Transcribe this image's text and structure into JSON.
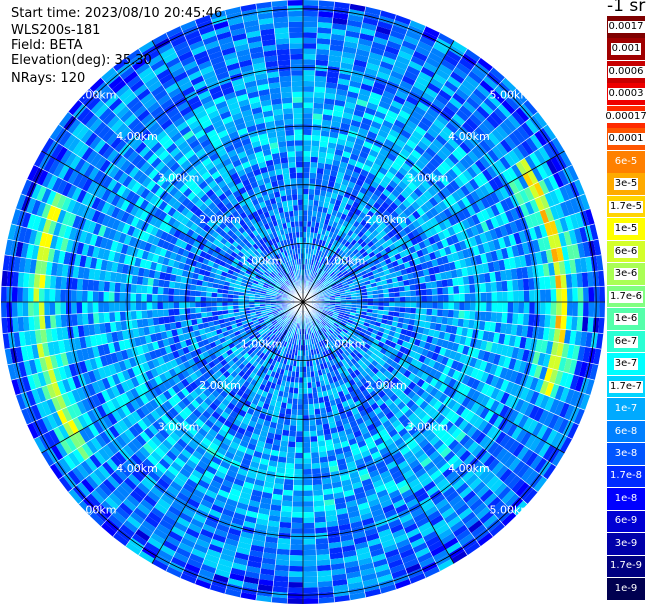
{
  "info": {
    "start_time": "Start time: 2023/08/10 20:45:46",
    "instrument": "WLS200s-181",
    "field": "Field: BETA",
    "elevation": "Elevation(deg): 35.30",
    "nrays": "NRays: 120"
  },
  "colorbar": {
    "title": "-1 sr",
    "entries": [
      {
        "label": "0.0017",
        "color": "#7f0000",
        "dark": false
      },
      {
        "label": "0.001",
        "color": "#a00000",
        "dark": false
      },
      {
        "label": "0.0006",
        "color": "#c80000",
        "dark": false
      },
      {
        "label": "0.0003",
        "color": "#ee0000",
        "dark": false
      },
      {
        "label": "0.00017",
        "color": "#ff2a00",
        "dark": false
      },
      {
        "label": "0.0001",
        "color": "#ff5500",
        "dark": false
      },
      {
        "label": "6e-5",
        "color": "#ff8000",
        "dark": true
      },
      {
        "label": "3e-5",
        "color": "#ffaa00",
        "dark": false
      },
      {
        "label": "1.7e-5",
        "color": "#ffd400",
        "dark": false
      },
      {
        "label": "1e-5",
        "color": "#ffff00",
        "dark": false
      },
      {
        "label": "6e-6",
        "color": "#d4ff2a",
        "dark": false
      },
      {
        "label": "3e-6",
        "color": "#aaff55",
        "dark": false
      },
      {
        "label": "1.7e-6",
        "color": "#80ff80",
        "dark": false
      },
      {
        "label": "1e-6",
        "color": "#55ffaa",
        "dark": false
      },
      {
        "label": "6e-7",
        "color": "#2affd4",
        "dark": false
      },
      {
        "label": "3e-7",
        "color": "#00ffff",
        "dark": false
      },
      {
        "label": "1.7e-7",
        "color": "#00d4ff",
        "dark": false
      },
      {
        "label": "1e-7",
        "color": "#00aaff",
        "dark": true
      },
      {
        "label": "6e-8",
        "color": "#0080ff",
        "dark": true
      },
      {
        "label": "3e-8",
        "color": "#0055ff",
        "dark": true
      },
      {
        "label": "1.7e-8",
        "color": "#002aff",
        "dark": true
      },
      {
        "label": "1e-8",
        "color": "#0000ff",
        "dark": true
      },
      {
        "label": "6e-9",
        "color": "#0000d4",
        "dark": true
      },
      {
        "label": "3e-9",
        "color": "#0000aa",
        "dark": true
      },
      {
        "label": "1.7e-9",
        "color": "#000080",
        "dark": true
      },
      {
        "label": "1e-9",
        "color": "#000050",
        "dark": true
      }
    ]
  },
  "chart_data": {
    "type": "heatmap",
    "projection": "polar-ppi",
    "field": "BETA",
    "units": "-1 sr",
    "elevation_deg": 35.3,
    "n_rays": 120,
    "range_rings_km": [
      1.0,
      2.0,
      3.0,
      4.0,
      5.0
    ],
    "ring_labels": [
      "1.00km",
      "2.00km",
      "3.00km",
      "4.00km",
      "5.00km"
    ],
    "spokes_deg": [
      0,
      30,
      60,
      90,
      120,
      150,
      180,
      210,
      240,
      270,
      300,
      330
    ],
    "max_range_km": 5.15,
    "dominant_value_range": [
      3e-08,
      6e-07
    ],
    "features": [
      {
        "description": "enhanced backscatter arc",
        "azimuth_deg_range": [
          58,
          110
        ],
        "range_km": 4.4,
        "max_value": 3e-05
      },
      {
        "description": "enhanced backscatter arc",
        "azimuth_deg_range": [
          235,
          295
        ],
        "range_km": 4.5,
        "max_value": 1e-05
      }
    ],
    "background_value": 1e-07
  }
}
